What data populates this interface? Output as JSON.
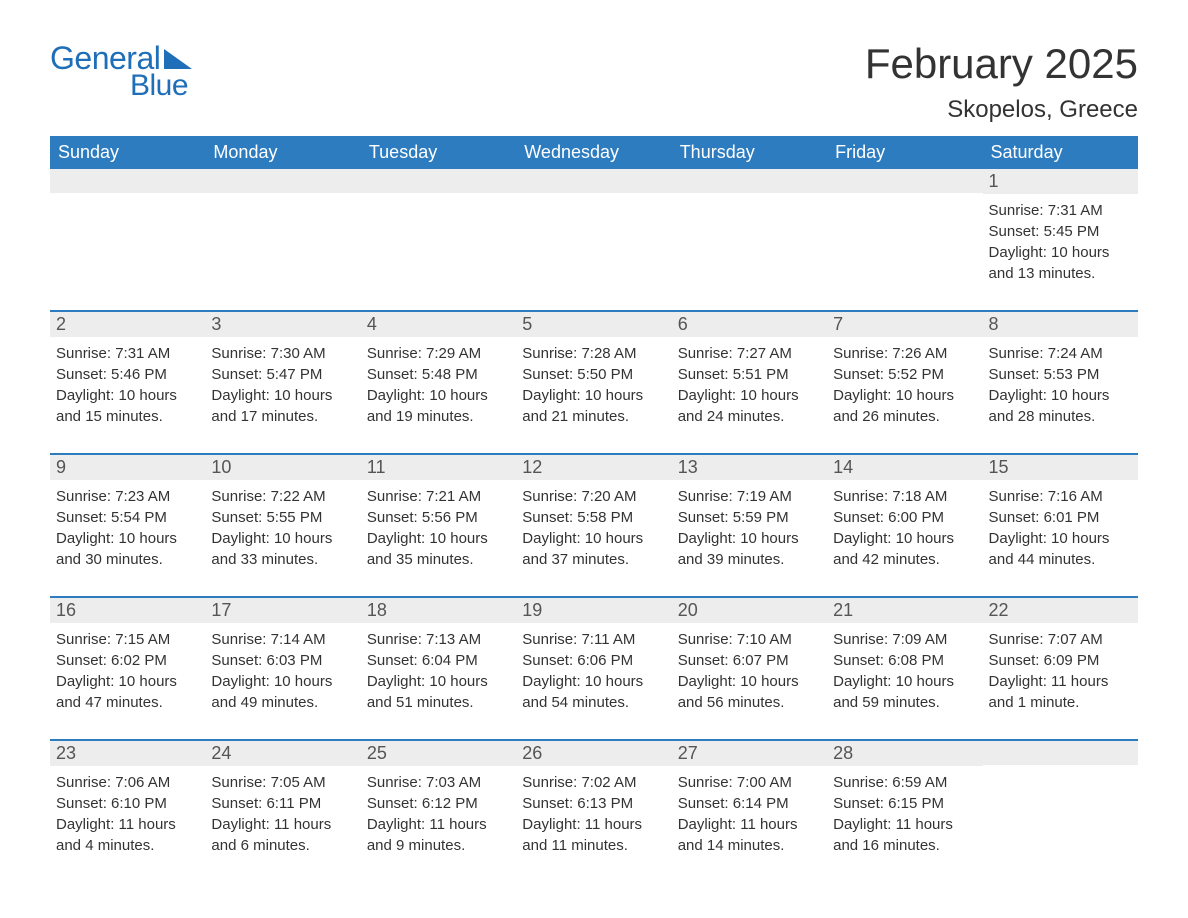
{
  "logo": {
    "text1": "General",
    "text2": "Blue",
    "accent_color": "#1e6eb8"
  },
  "title": "February 2025",
  "location": "Skopelos, Greece",
  "header_bg": "#2d7cc0",
  "daynum_bg": "#ededed",
  "weekdays": [
    "Sunday",
    "Monday",
    "Tuesday",
    "Wednesday",
    "Thursday",
    "Friday",
    "Saturday"
  ],
  "weeks": [
    [
      null,
      null,
      null,
      null,
      null,
      null,
      {
        "n": "1",
        "sunrise": "Sunrise: 7:31 AM",
        "sunset": "Sunset: 5:45 PM",
        "daylight1": "Daylight: 10 hours",
        "daylight2": "and 13 minutes."
      }
    ],
    [
      {
        "n": "2",
        "sunrise": "Sunrise: 7:31 AM",
        "sunset": "Sunset: 5:46 PM",
        "daylight1": "Daylight: 10 hours",
        "daylight2": "and 15 minutes."
      },
      {
        "n": "3",
        "sunrise": "Sunrise: 7:30 AM",
        "sunset": "Sunset: 5:47 PM",
        "daylight1": "Daylight: 10 hours",
        "daylight2": "and 17 minutes."
      },
      {
        "n": "4",
        "sunrise": "Sunrise: 7:29 AM",
        "sunset": "Sunset: 5:48 PM",
        "daylight1": "Daylight: 10 hours",
        "daylight2": "and 19 minutes."
      },
      {
        "n": "5",
        "sunrise": "Sunrise: 7:28 AM",
        "sunset": "Sunset: 5:50 PM",
        "daylight1": "Daylight: 10 hours",
        "daylight2": "and 21 minutes."
      },
      {
        "n": "6",
        "sunrise": "Sunrise: 7:27 AM",
        "sunset": "Sunset: 5:51 PM",
        "daylight1": "Daylight: 10 hours",
        "daylight2": "and 24 minutes."
      },
      {
        "n": "7",
        "sunrise": "Sunrise: 7:26 AM",
        "sunset": "Sunset: 5:52 PM",
        "daylight1": "Daylight: 10 hours",
        "daylight2": "and 26 minutes."
      },
      {
        "n": "8",
        "sunrise": "Sunrise: 7:24 AM",
        "sunset": "Sunset: 5:53 PM",
        "daylight1": "Daylight: 10 hours",
        "daylight2": "and 28 minutes."
      }
    ],
    [
      {
        "n": "9",
        "sunrise": "Sunrise: 7:23 AM",
        "sunset": "Sunset: 5:54 PM",
        "daylight1": "Daylight: 10 hours",
        "daylight2": "and 30 minutes."
      },
      {
        "n": "10",
        "sunrise": "Sunrise: 7:22 AM",
        "sunset": "Sunset: 5:55 PM",
        "daylight1": "Daylight: 10 hours",
        "daylight2": "and 33 minutes."
      },
      {
        "n": "11",
        "sunrise": "Sunrise: 7:21 AM",
        "sunset": "Sunset: 5:56 PM",
        "daylight1": "Daylight: 10 hours",
        "daylight2": "and 35 minutes."
      },
      {
        "n": "12",
        "sunrise": "Sunrise: 7:20 AM",
        "sunset": "Sunset: 5:58 PM",
        "daylight1": "Daylight: 10 hours",
        "daylight2": "and 37 minutes."
      },
      {
        "n": "13",
        "sunrise": "Sunrise: 7:19 AM",
        "sunset": "Sunset: 5:59 PM",
        "daylight1": "Daylight: 10 hours",
        "daylight2": "and 39 minutes."
      },
      {
        "n": "14",
        "sunrise": "Sunrise: 7:18 AM",
        "sunset": "Sunset: 6:00 PM",
        "daylight1": "Daylight: 10 hours",
        "daylight2": "and 42 minutes."
      },
      {
        "n": "15",
        "sunrise": "Sunrise: 7:16 AM",
        "sunset": "Sunset: 6:01 PM",
        "daylight1": "Daylight: 10 hours",
        "daylight2": "and 44 minutes."
      }
    ],
    [
      {
        "n": "16",
        "sunrise": "Sunrise: 7:15 AM",
        "sunset": "Sunset: 6:02 PM",
        "daylight1": "Daylight: 10 hours",
        "daylight2": "and 47 minutes."
      },
      {
        "n": "17",
        "sunrise": "Sunrise: 7:14 AM",
        "sunset": "Sunset: 6:03 PM",
        "daylight1": "Daylight: 10 hours",
        "daylight2": "and 49 minutes."
      },
      {
        "n": "18",
        "sunrise": "Sunrise: 7:13 AM",
        "sunset": "Sunset: 6:04 PM",
        "daylight1": "Daylight: 10 hours",
        "daylight2": "and 51 minutes."
      },
      {
        "n": "19",
        "sunrise": "Sunrise: 7:11 AM",
        "sunset": "Sunset: 6:06 PM",
        "daylight1": "Daylight: 10 hours",
        "daylight2": "and 54 minutes."
      },
      {
        "n": "20",
        "sunrise": "Sunrise: 7:10 AM",
        "sunset": "Sunset: 6:07 PM",
        "daylight1": "Daylight: 10 hours",
        "daylight2": "and 56 minutes."
      },
      {
        "n": "21",
        "sunrise": "Sunrise: 7:09 AM",
        "sunset": "Sunset: 6:08 PM",
        "daylight1": "Daylight: 10 hours",
        "daylight2": "and 59 minutes."
      },
      {
        "n": "22",
        "sunrise": "Sunrise: 7:07 AM",
        "sunset": "Sunset: 6:09 PM",
        "daylight1": "Daylight: 11 hours",
        "daylight2": "and 1 minute."
      }
    ],
    [
      {
        "n": "23",
        "sunrise": "Sunrise: 7:06 AM",
        "sunset": "Sunset: 6:10 PM",
        "daylight1": "Daylight: 11 hours",
        "daylight2": "and 4 minutes."
      },
      {
        "n": "24",
        "sunrise": "Sunrise: 7:05 AM",
        "sunset": "Sunset: 6:11 PM",
        "daylight1": "Daylight: 11 hours",
        "daylight2": "and 6 minutes."
      },
      {
        "n": "25",
        "sunrise": "Sunrise: 7:03 AM",
        "sunset": "Sunset: 6:12 PM",
        "daylight1": "Daylight: 11 hours",
        "daylight2": "and 9 minutes."
      },
      {
        "n": "26",
        "sunrise": "Sunrise: 7:02 AM",
        "sunset": "Sunset: 6:13 PM",
        "daylight1": "Daylight: 11 hours",
        "daylight2": "and 11 minutes."
      },
      {
        "n": "27",
        "sunrise": "Sunrise: 7:00 AM",
        "sunset": "Sunset: 6:14 PM",
        "daylight1": "Daylight: 11 hours",
        "daylight2": "and 14 minutes."
      },
      {
        "n": "28",
        "sunrise": "Sunrise: 6:59 AM",
        "sunset": "Sunset: 6:15 PM",
        "daylight1": "Daylight: 11 hours",
        "daylight2": "and 16 minutes."
      },
      null
    ]
  ]
}
